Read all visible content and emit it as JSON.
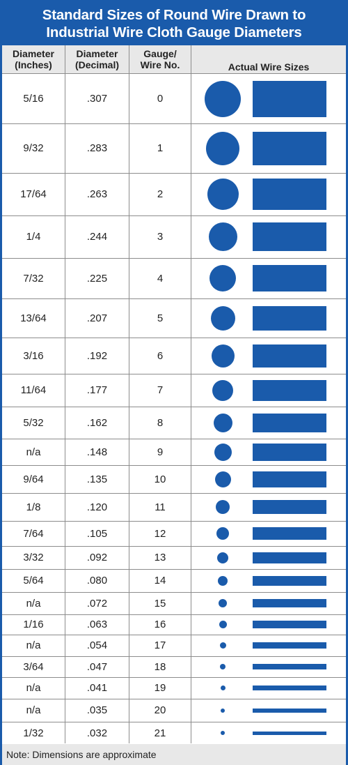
{
  "title": {
    "line1": "Standard Sizes of Round Wire Drawn to",
    "line2": "Industrial Wire Cloth Gauge Diameters"
  },
  "headers": {
    "inches": [
      "Diameter",
      "(Inches)"
    ],
    "decimal": [
      "Diameter",
      "(Decimal)"
    ],
    "gauge": [
      "Gauge/",
      "Wire No."
    ],
    "wire": "Actual Wire Sizes"
  },
  "rows": [
    {
      "inches": "5/16",
      "decimal": ".307",
      "gauge": "0"
    },
    {
      "inches": "9/32",
      "decimal": ".283",
      "gauge": "1"
    },
    {
      "inches": "17/64",
      "decimal": ".263",
      "gauge": "2"
    },
    {
      "inches": "1/4",
      "decimal": ".244",
      "gauge": "3"
    },
    {
      "inches": "7/32",
      "decimal": ".225",
      "gauge": "4"
    },
    {
      "inches": "13/64",
      "decimal": ".207",
      "gauge": "5"
    },
    {
      "inches": "3/16",
      "decimal": ".192",
      "gauge": "6"
    },
    {
      "inches": "11/64",
      "decimal": ".177",
      "gauge": "7"
    },
    {
      "inches": "5/32",
      "decimal": ".162",
      "gauge": "8"
    },
    {
      "inches": "n/a",
      "decimal": ".148",
      "gauge": "9"
    },
    {
      "inches": "9/64",
      "decimal": ".135",
      "gauge": "10"
    },
    {
      "inches": "1/8",
      "decimal": ".120",
      "gauge": "11"
    },
    {
      "inches": "7/64",
      "decimal": ".105",
      "gauge": "12"
    },
    {
      "inches": "3/32",
      "decimal": ".092",
      "gauge": "13"
    },
    {
      "inches": "5/64",
      "decimal": ".080",
      "gauge": "14"
    },
    {
      "inches": "n/a",
      "decimal": ".072",
      "gauge": "15"
    },
    {
      "inches": "1/16",
      "decimal": ".063",
      "gauge": "16"
    },
    {
      "inches": "n/a",
      "decimal": ".054",
      "gauge": "17"
    },
    {
      "inches": "3/64",
      "decimal": ".047",
      "gauge": "18"
    },
    {
      "inches": "n/a",
      "decimal": ".041",
      "gauge": "19"
    },
    {
      "inches": "n/a",
      "decimal": ".035",
      "gauge": "20"
    },
    {
      "inches": "1/32",
      "decimal": ".032",
      "gauge": "21"
    }
  ],
  "note": "Note: Dimensions are approximate",
  "colors": {
    "accent": "#1a5bab",
    "header_bg": "#e8e8e8",
    "rule": "#8c8c8c"
  }
}
